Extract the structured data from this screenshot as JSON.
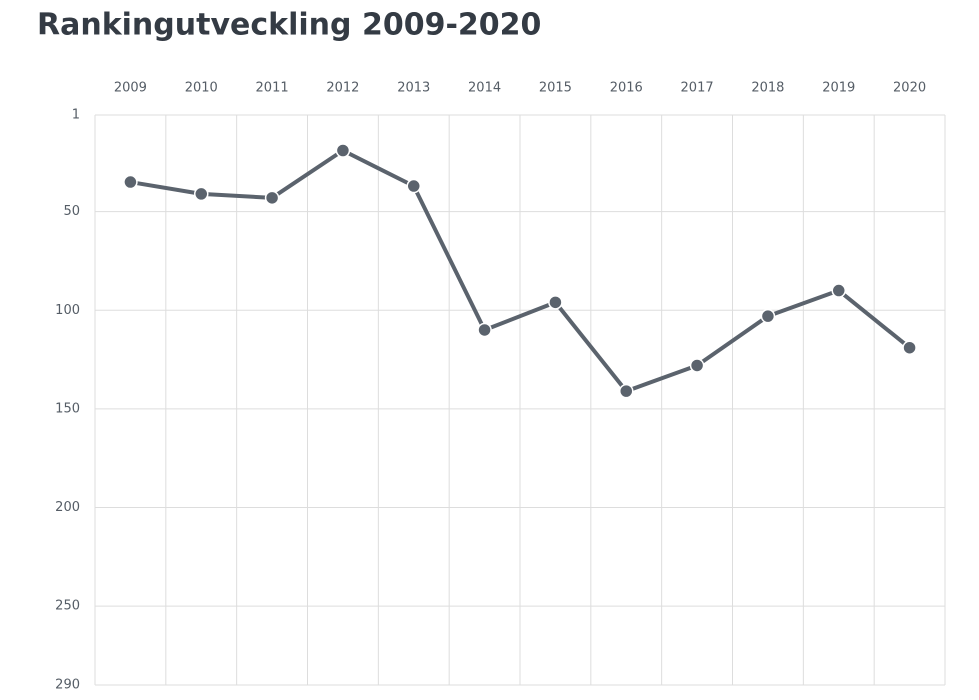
{
  "chart_data": {
    "type": "line",
    "title": "Rankingutveckling 2009-2020",
    "categories": [
      "2009",
      "2010",
      "2011",
      "2012",
      "2013",
      "2014",
      "2015",
      "2016",
      "2017",
      "2018",
      "2019",
      "2020"
    ],
    "values": [
      35,
      41,
      43,
      19,
      37,
      110,
      96,
      141,
      128,
      103,
      90,
      119
    ],
    "color": "#5b636d",
    "ylim": [
      1,
      290
    ],
    "yticks": [
      1,
      50,
      100,
      150,
      200,
      250,
      290
    ],
    "y_inverted": true,
    "grid": true
  }
}
